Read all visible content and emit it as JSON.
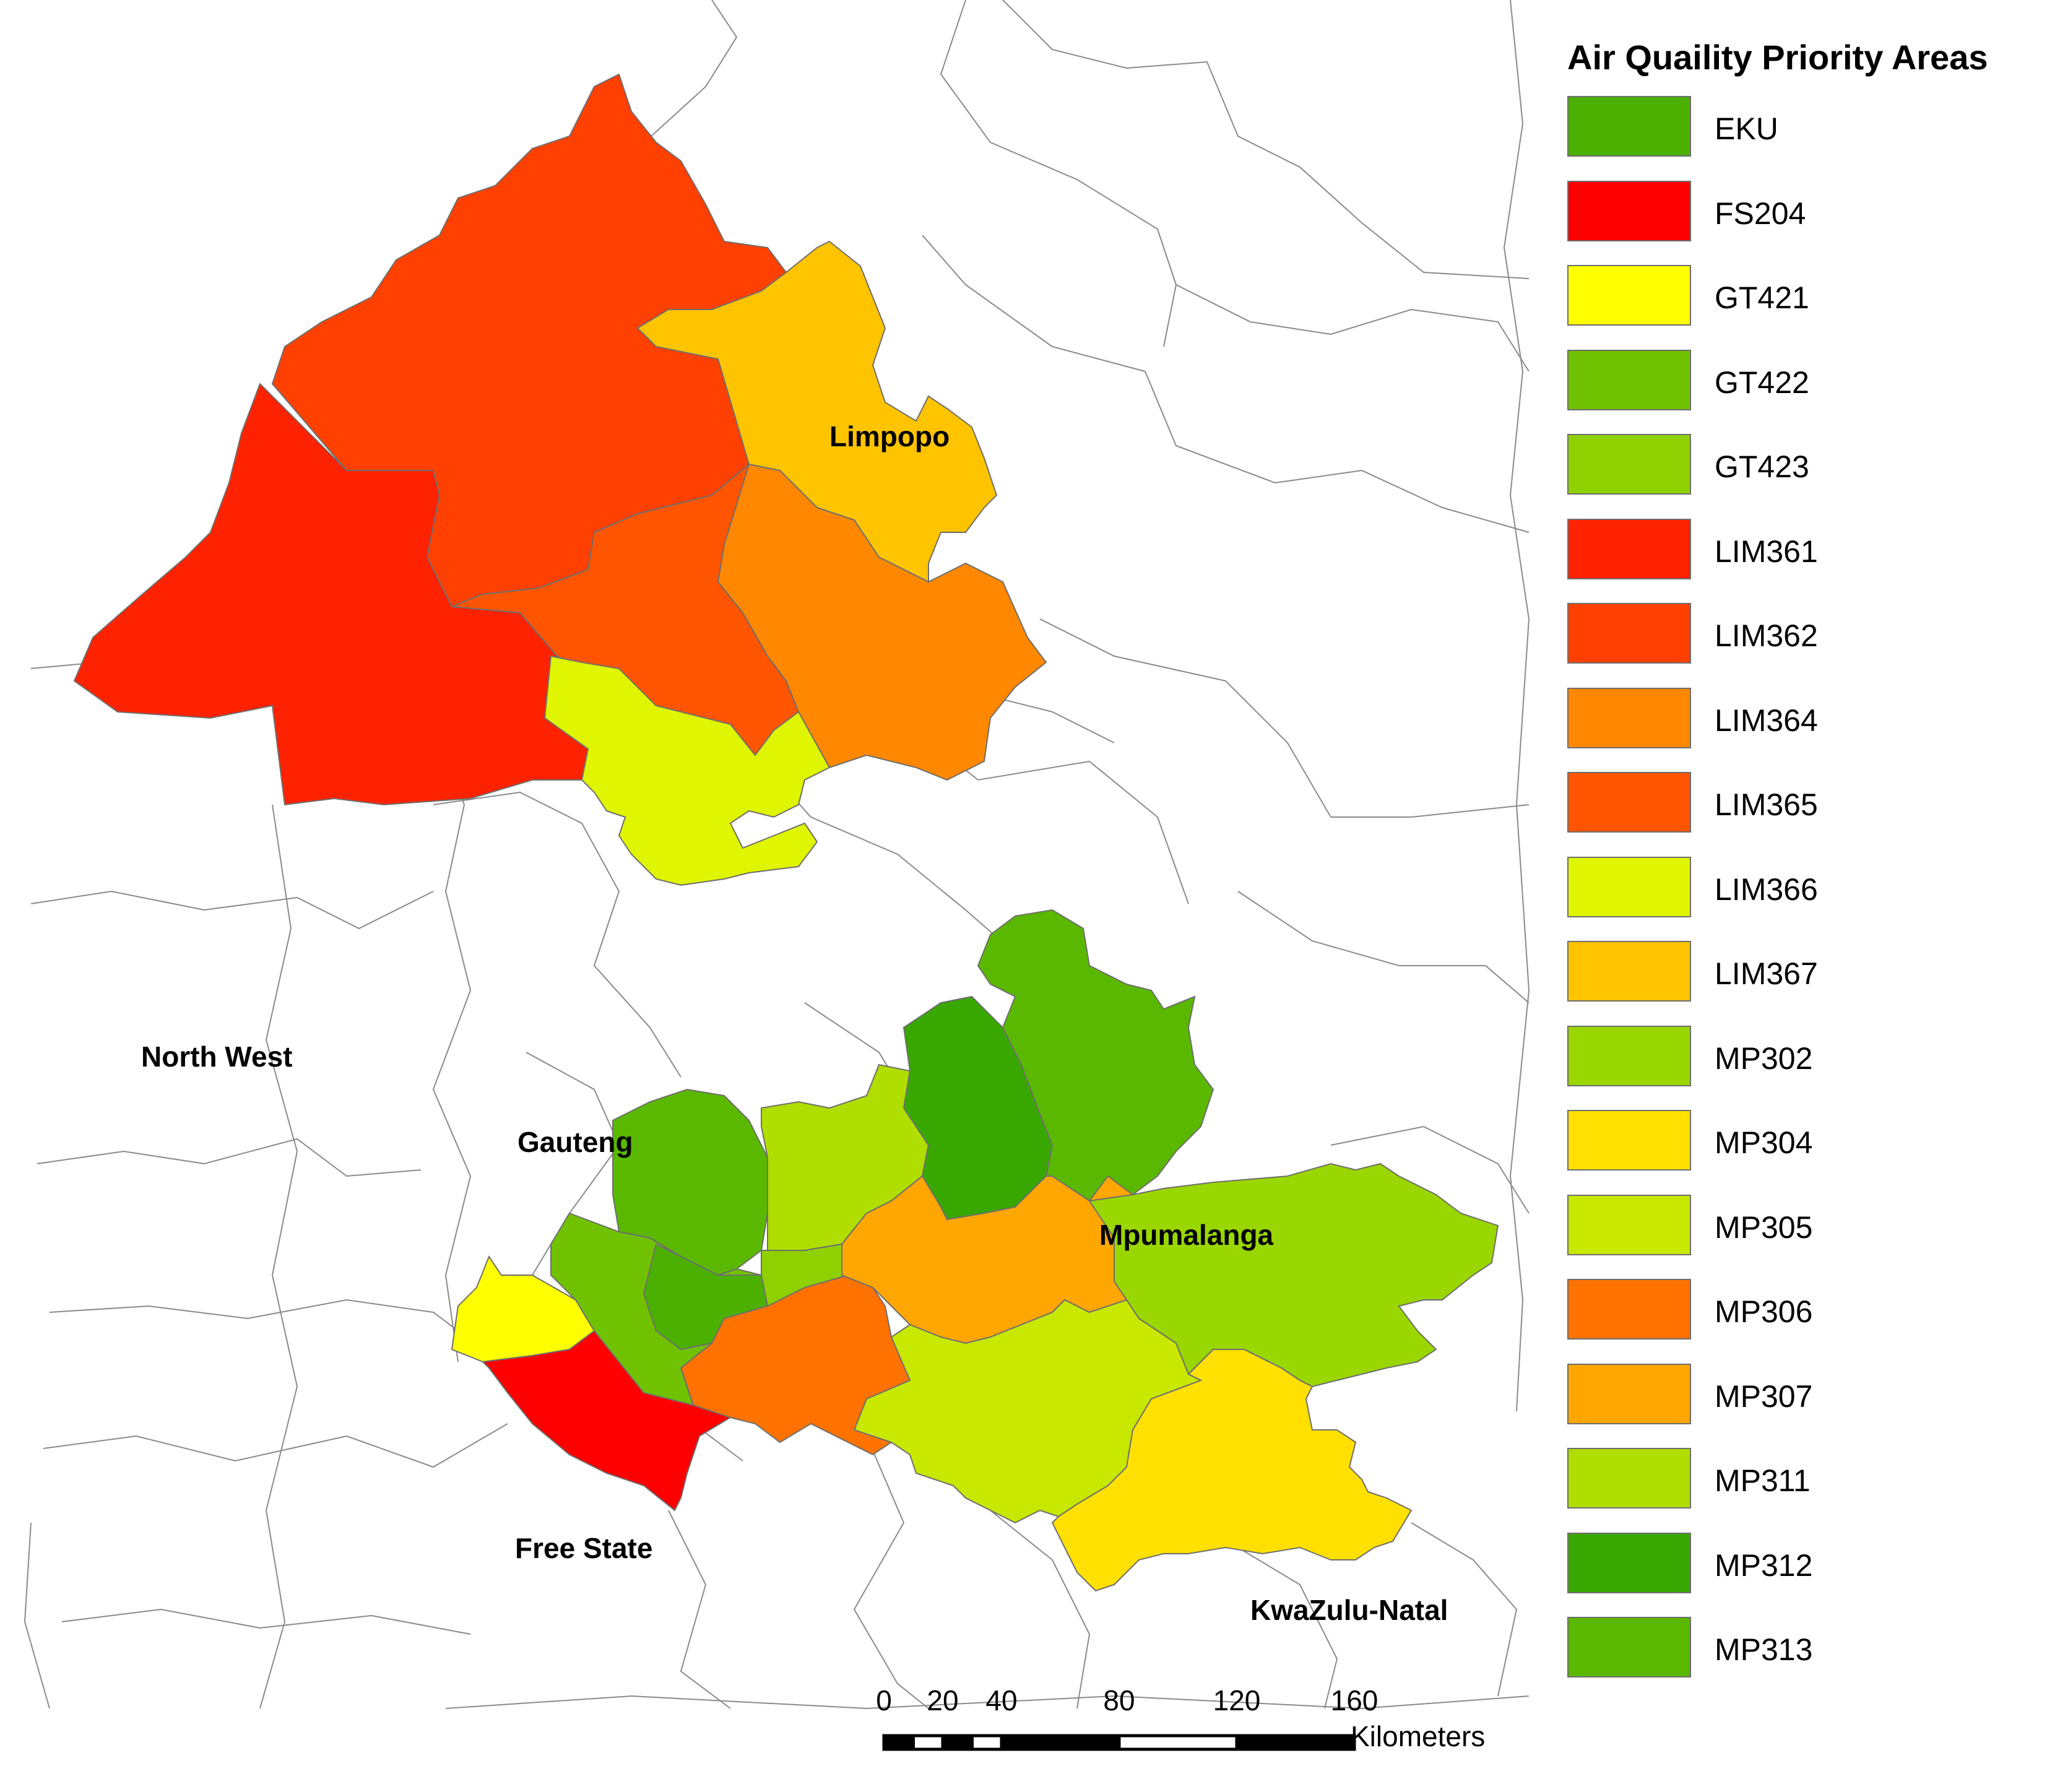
{
  "legend": {
    "title": "Air Quaility Priority Areas",
    "items": [
      {
        "code": "EKU",
        "color": "#4cb000"
      },
      {
        "code": "FS204",
        "color": "#ff0000"
      },
      {
        "code": "GT421",
        "color": "#ffff00"
      },
      {
        "code": "GT422",
        "color": "#70c200"
      },
      {
        "code": "GT423",
        "color": "#8fd100"
      },
      {
        "code": "LIM361",
        "color": "#ff2200"
      },
      {
        "code": "LIM362",
        "color": "#ff4000"
      },
      {
        "code": "LIM364",
        "color": "#ff8800"
      },
      {
        "code": "LIM365",
        "color": "#ff5500"
      },
      {
        "code": "LIM366",
        "color": "#e0f500"
      },
      {
        "code": "LIM367",
        "color": "#ffc400"
      },
      {
        "code": "MP302",
        "color": "#9ad600"
      },
      {
        "code": "MP304",
        "color": "#ffe000"
      },
      {
        "code": "MP305",
        "color": "#c8e800"
      },
      {
        "code": "MP306",
        "color": "#ff7200"
      },
      {
        "code": "MP307",
        "color": "#ffa600"
      },
      {
        "code": "MP311",
        "color": "#b0de00"
      },
      {
        "code": "MP312",
        "color": "#38a800"
      },
      {
        "code": "MP313",
        "color": "#5ab800"
      }
    ]
  },
  "map": {
    "province_labels": {
      "limpopo": "Limpopo",
      "north_west": "North West",
      "gauteng": "Gauteng",
      "mpumalanga": "Mpumalanga",
      "free_state": "Free State",
      "kwazulu_natal": "KwaZulu-Natal"
    }
  },
  "scale_bar": {
    "ticks": [
      "0",
      "20",
      "40",
      "80",
      "120",
      "160"
    ],
    "tick_values_km": [
      0,
      20,
      40,
      80,
      120,
      160
    ],
    "units": "Kilometers"
  }
}
